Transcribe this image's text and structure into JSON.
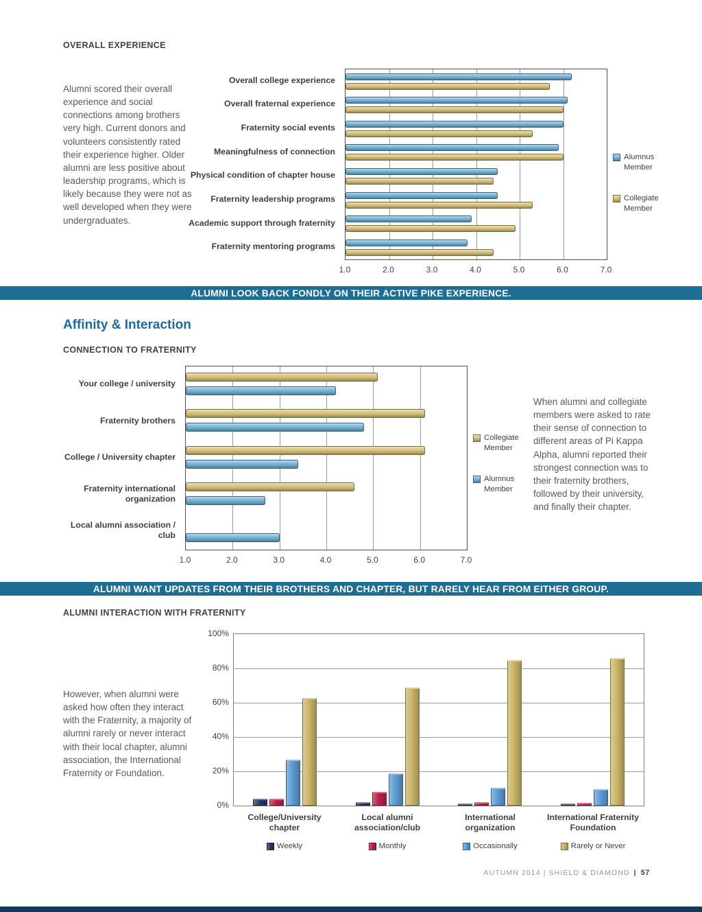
{
  "colors": {
    "banner_bg": "#1d6d95",
    "accent_heading": "#1c6b9d",
    "body_text": "#58595b",
    "heading_text": "#414042",
    "alumnus_blue": "#6fb0d5",
    "collegiate_tan": "#d2be74",
    "weekly_navy": "#24386b",
    "monthly_crimson": "#bb2049",
    "occasionally_blue": "#5c9cd4",
    "rarely_tan": "#c9b667",
    "bottom_bar": "#16395f"
  },
  "sections": {
    "overall": {
      "heading": "OVERALL EXPERIENCE",
      "paragraph": "Alumni scored their overall experience and social connections among brothers very high. Current donors and volunteers consistently rated their experience higher. Older alumni are less positive about leadership programs, which is likely because they were not as well developed when they were undergraduates."
    },
    "banner1": "ALUMNI LOOK BACK FONDLY ON THEIR ACTIVE PIKE EXPERIENCE.",
    "affinity": {
      "title": "Affinity & Interaction",
      "subheading": "CONNECTION TO FRATERNITY",
      "paragraph": "When alumni and collegiate members were asked to rate their sense of connection to different areas of Pi Kappa Alpha, alumni reported their strongest connection was to their fraternity brothers, followed by their university, and finally their chapter."
    },
    "banner2": "ALUMNI WANT UPDATES FROM THEIR BROTHERS AND CHAPTER, BUT RARELY HEAR FROM EITHER GROUP.",
    "interaction": {
      "heading": "ALUMNI INTERACTION WITH FRATERNITY",
      "paragraph": "However, when alumni were asked how often they interact with the Fraternity, a majority of alumni rarely or never interact with their local chapter, alumni association, the International Fraternity or Foundation."
    },
    "footer": {
      "text": "AUTUMN 2014 | SHIELD & DIAMOND",
      "sep": "|",
      "page": "57"
    }
  },
  "chart_data": [
    {
      "type": "bar",
      "orientation": "horizontal",
      "title": "Overall Experience",
      "categories": [
        "Overall college experience",
        "Overall fraternal experience",
        "Fraternity social events",
        "Meaningfulness of connection",
        "Physical condition of chapter house",
        "Fraternity leadership programs",
        "Academic support through fraternity",
        "Fraternity mentoring programs"
      ],
      "series": [
        {
          "name": "Alumnus Member",
          "color": "#6fb0d5",
          "values": [
            6.2,
            6.1,
            6.0,
            5.9,
            4.5,
            4.5,
            3.9,
            3.8
          ]
        },
        {
          "name": "Collegiate Member",
          "color": "#d2be74",
          "values": [
            5.7,
            6.0,
            5.3,
            6.0,
            4.4,
            5.3,
            4.9,
            4.4
          ]
        }
      ],
      "xlim": [
        1.0,
        7.0
      ],
      "xticks": [
        "1.0",
        "2.0",
        "3.0",
        "4.0",
        "5.0",
        "6.0",
        "7.0"
      ],
      "grid": true,
      "legend_position": "right"
    },
    {
      "type": "bar",
      "orientation": "horizontal",
      "title": "Connection to Fraternity",
      "categories": [
        "Your college / university",
        "Fraternity brothers",
        "College / University chapter",
        "Fraternity international organization",
        "Local alumni association / club"
      ],
      "series": [
        {
          "name": "Collegiate Member",
          "color": "#d2be74",
          "values": [
            5.1,
            6.1,
            6.1,
            4.6,
            null
          ]
        },
        {
          "name": "Alumnus Member",
          "color": "#6fb0d5",
          "values": [
            4.2,
            4.8,
            3.4,
            2.7,
            3.0
          ]
        }
      ],
      "xlim": [
        1.0,
        7.0
      ],
      "xticks": [
        "1.0",
        "2.0",
        "3.0",
        "4.0",
        "5.0",
        "6.0",
        "7.0"
      ],
      "grid": true,
      "legend_position": "right"
    },
    {
      "type": "bar",
      "orientation": "vertical",
      "title": "Alumni Interaction with Fraternity",
      "categories": [
        "College/University chapter",
        "Local alumni association/club",
        "International organization",
        "International Fraternity Foundation"
      ],
      "series": [
        {
          "name": "Weekly",
          "color": "#24386b",
          "values": [
            4,
            2,
            0.5,
            0.5
          ]
        },
        {
          "name": "Monthly",
          "color": "#bb2049",
          "values": [
            4,
            8,
            2,
            1.5
          ]
        },
        {
          "name": "Occasionally",
          "color": "#5c9cd4",
          "values": [
            27,
            19,
            10.5,
            9.5
          ]
        },
        {
          "name": "Rarely or Never",
          "color": "#c9b667",
          "values": [
            63,
            69,
            85,
            86
          ]
        }
      ],
      "ylim": [
        0,
        100
      ],
      "yticks": [
        "0%",
        "20%",
        "40%",
        "60%",
        "80%",
        "100%"
      ],
      "grid": true,
      "legend_position": "bottom"
    }
  ]
}
